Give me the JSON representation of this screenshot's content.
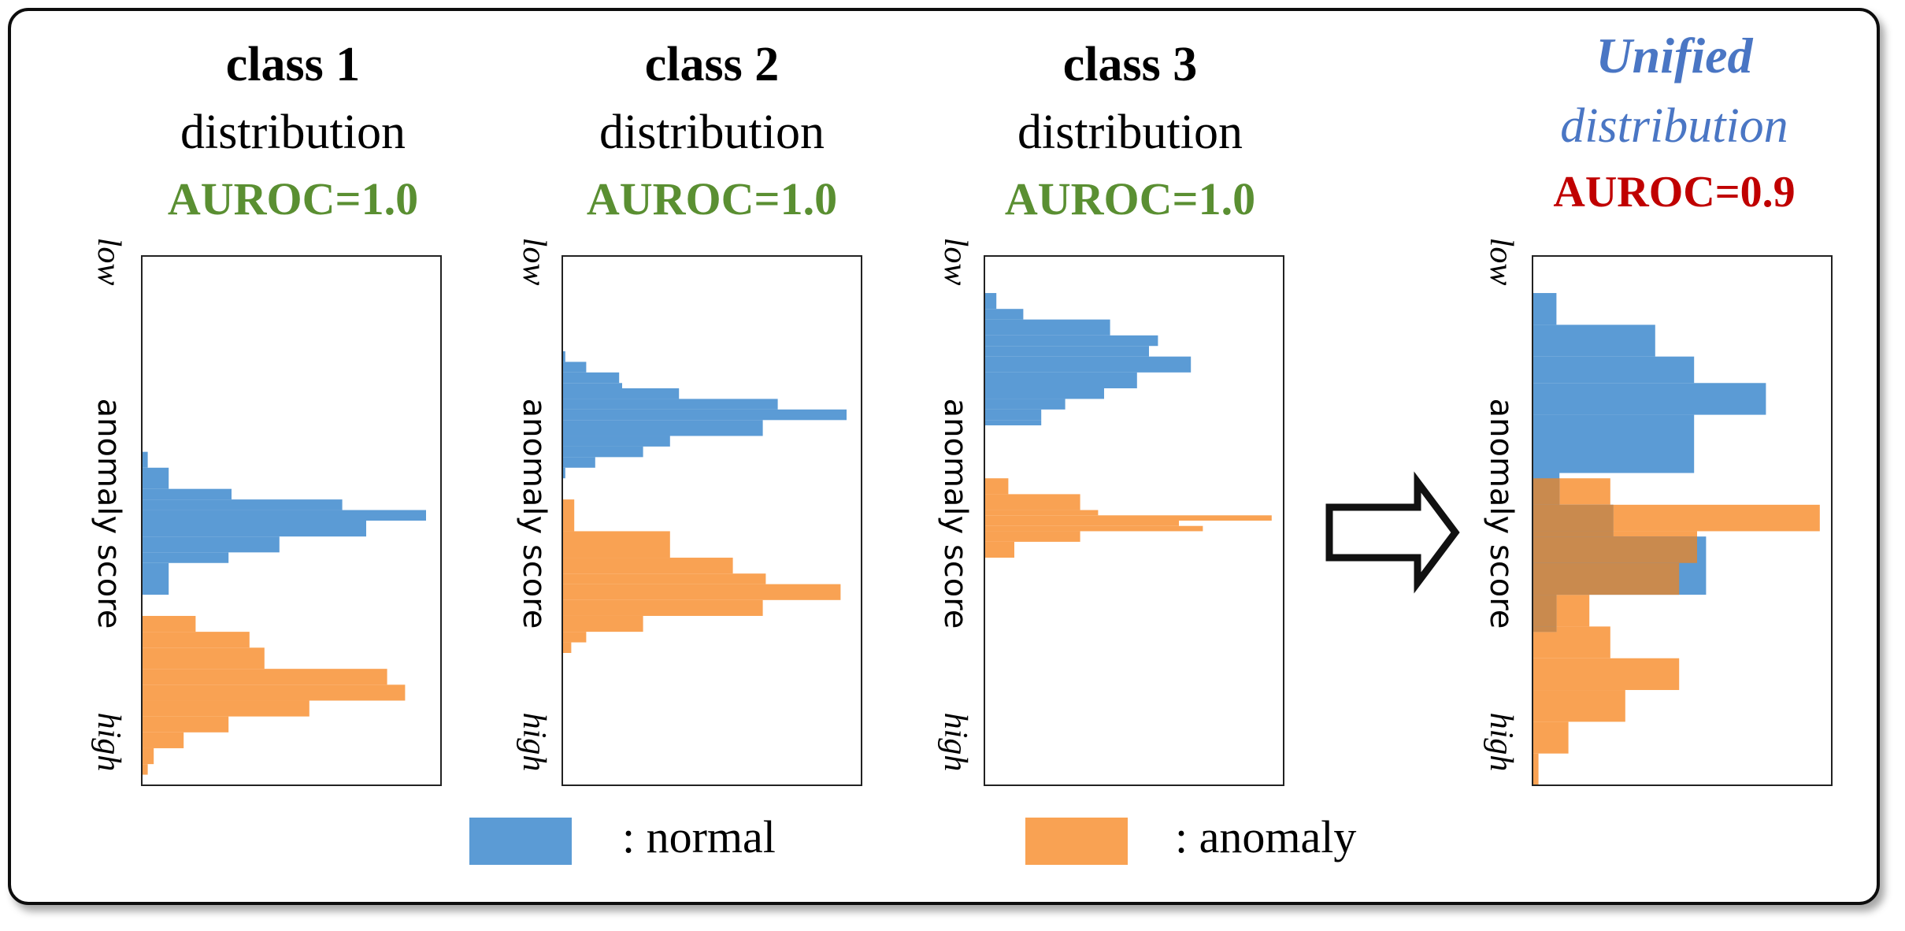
{
  "colors": {
    "normal": "#5b9bd5",
    "anomaly": "#f9a253",
    "overlap": "#c98a4e",
    "good": "#5a8f32",
    "bad": "#c00000",
    "unified": "#4a76c4",
    "frame": "#111111"
  },
  "legend": {
    "normal_label": ": normal",
    "anomaly_label": ": anomaly"
  },
  "arrow_icon": "right-arrow-icon",
  "chart_data": [
    {
      "type": "histogram",
      "orientation": "horizontal",
      "title": "class 1",
      "subtitle": "distribution",
      "metric": "AUROC=1.0",
      "metric_status": "good",
      "axis_label": "anomaly score",
      "axis_low": "low",
      "axis_high": "high",
      "y_range": [
        0,
        100
      ],
      "x_range": [
        0,
        100
      ],
      "series": [
        {
          "name": "normal",
          "bins": [
            {
              "y0": 37,
              "y1": 40,
              "v": 2
            },
            {
              "y0": 40,
              "y1": 44,
              "v": 9
            },
            {
              "y0": 44,
              "y1": 46,
              "v": 30
            },
            {
              "y0": 46,
              "y1": 48,
              "v": 67
            },
            {
              "y0": 48,
              "y1": 50,
              "v": 95
            },
            {
              "y0": 50,
              "y1": 53,
              "v": 75
            },
            {
              "y0": 53,
              "y1": 56,
              "v": 46
            },
            {
              "y0": 56,
              "y1": 58,
              "v": 29
            },
            {
              "y0": 58,
              "y1": 64,
              "v": 9
            }
          ]
        },
        {
          "name": "anomaly",
          "bins": [
            {
              "y0": 68,
              "y1": 71,
              "v": 18
            },
            {
              "y0": 71,
              "y1": 74,
              "v": 36
            },
            {
              "y0": 74,
              "y1": 78,
              "v": 41
            },
            {
              "y0": 78,
              "y1": 81,
              "v": 82
            },
            {
              "y0": 81,
              "y1": 84,
              "v": 88
            },
            {
              "y0": 84,
              "y1": 87,
              "v": 56
            },
            {
              "y0": 87,
              "y1": 90,
              "v": 29
            },
            {
              "y0": 90,
              "y1": 93,
              "v": 14
            },
            {
              "y0": 93,
              "y1": 96,
              "v": 4
            },
            {
              "y0": 96,
              "y1": 98,
              "v": 2
            }
          ]
        }
      ]
    },
    {
      "type": "histogram",
      "orientation": "horizontal",
      "title": "class 2",
      "subtitle": "distribution",
      "metric": "AUROC=1.0",
      "metric_status": "good",
      "axis_label": "anomaly score",
      "axis_low": "low",
      "axis_high": "high",
      "y_range": [
        0,
        100
      ],
      "x_range": [
        0,
        100
      ],
      "series": [
        {
          "name": "normal",
          "bins": [
            {
              "y0": 18,
              "y1": 20,
              "v": 1
            },
            {
              "y0": 20,
              "y1": 22,
              "v": 8
            },
            {
              "y0": 22,
              "y1": 24,
              "v": 19
            },
            {
              "y0": 24,
              "y1": 25,
              "v": 20
            },
            {
              "y0": 25,
              "y1": 27,
              "v": 39
            },
            {
              "y0": 27,
              "y1": 29,
              "v": 72
            },
            {
              "y0": 29,
              "y1": 31,
              "v": 95
            },
            {
              "y0": 31,
              "y1": 34,
              "v": 67
            },
            {
              "y0": 34,
              "y1": 36,
              "v": 36
            },
            {
              "y0": 36,
              "y1": 38,
              "v": 27
            },
            {
              "y0": 38,
              "y1": 40,
              "v": 11
            },
            {
              "y0": 40,
              "y1": 42,
              "v": 1
            }
          ]
        },
        {
          "name": "anomaly",
          "bins": [
            {
              "y0": 46,
              "y1": 52,
              "v": 4
            },
            {
              "y0": 52,
              "y1": 57,
              "v": 36
            },
            {
              "y0": 57,
              "y1": 60,
              "v": 57
            },
            {
              "y0": 60,
              "y1": 62,
              "v": 68
            },
            {
              "y0": 62,
              "y1": 65,
              "v": 93
            },
            {
              "y0": 65,
              "y1": 68,
              "v": 67
            },
            {
              "y0": 68,
              "y1": 71,
              "v": 27
            },
            {
              "y0": 71,
              "y1": 73,
              "v": 8
            },
            {
              "y0": 73,
              "y1": 75,
              "v": 3
            }
          ]
        }
      ]
    },
    {
      "type": "histogram",
      "orientation": "horizontal",
      "title": "class 3",
      "subtitle": "distribution",
      "metric": "AUROC=1.0",
      "metric_status": "good",
      "axis_label": "anomaly score",
      "axis_low": "low",
      "axis_high": "high",
      "y_range": [
        0,
        100
      ],
      "x_range": [
        0,
        100
      ],
      "series": [
        {
          "name": "normal",
          "bins": [
            {
              "y0": 7,
              "y1": 10,
              "v": 4
            },
            {
              "y0": 10,
              "y1": 12,
              "v": 13
            },
            {
              "y0": 12,
              "y1": 15,
              "v": 42
            },
            {
              "y0": 15,
              "y1": 17,
              "v": 58
            },
            {
              "y0": 17,
              "y1": 19,
              "v": 55
            },
            {
              "y0": 19,
              "y1": 22,
              "v": 69
            },
            {
              "y0": 22,
              "y1": 25,
              "v": 51
            },
            {
              "y0": 25,
              "y1": 27,
              "v": 40
            },
            {
              "y0": 27,
              "y1": 29,
              "v": 27
            },
            {
              "y0": 29,
              "y1": 31,
              "v": 19
            },
            {
              "y0": 31,
              "y1": 32,
              "v": 19
            }
          ]
        },
        {
          "name": "anomaly",
          "bins": [
            {
              "y0": 42,
              "y1": 45,
              "v": 8
            },
            {
              "y0": 45,
              "y1": 48,
              "v": 32
            },
            {
              "y0": 48,
              "y1": 49,
              "v": 38
            },
            {
              "y0": 49,
              "y1": 50,
              "v": 96
            },
            {
              "y0": 50,
              "y1": 51,
              "v": 65
            },
            {
              "y0": 51,
              "y1": 52,
              "v": 73
            },
            {
              "y0": 52,
              "y1": 54,
              "v": 32
            },
            {
              "y0": 54,
              "y1": 57,
              "v": 10
            }
          ]
        }
      ]
    },
    {
      "type": "histogram",
      "orientation": "horizontal",
      "title": "Unified",
      "subtitle": "distribution",
      "metric": "AUROC=0.9",
      "metric_status": "bad",
      "axis_label": "anomaly score",
      "axis_low": "low",
      "axis_high": "high",
      "y_range": [
        0,
        100
      ],
      "x_range": [
        0,
        100
      ],
      "series": [
        {
          "name": "normal",
          "bins": [
            {
              "y0": 7,
              "y1": 13,
              "v": 8
            },
            {
              "y0": 13,
              "y1": 19,
              "v": 41
            },
            {
              "y0": 19,
              "y1": 24,
              "v": 54
            },
            {
              "y0": 24,
              "y1": 30,
              "v": 78
            },
            {
              "y0": 30,
              "y1": 41,
              "v": 54
            },
            {
              "y0": 41,
              "y1": 47,
              "v": 9
            },
            {
              "y0": 47,
              "y1": 53,
              "v": 27
            },
            {
              "y0": 53,
              "y1": 64,
              "v": 58
            },
            {
              "y0": 64,
              "y1": 71,
              "v": 8
            }
          ]
        },
        {
          "name": "anomaly",
          "bins": [
            {
              "y0": 42,
              "y1": 47,
              "v": 26
            },
            {
              "y0": 47,
              "y1": 52,
              "v": 96
            },
            {
              "y0": 52,
              "y1": 58,
              "v": 55
            },
            {
              "y0": 58,
              "y1": 64,
              "v": 49
            },
            {
              "y0": 64,
              "y1": 70,
              "v": 19
            },
            {
              "y0": 70,
              "y1": 76,
              "v": 26
            },
            {
              "y0": 76,
              "y1": 82,
              "v": 49
            },
            {
              "y0": 82,
              "y1": 88,
              "v": 31
            },
            {
              "y0": 88,
              "y1": 94,
              "v": 12
            },
            {
              "y0": 94,
              "y1": 100,
              "v": 2
            }
          ]
        }
      ]
    }
  ]
}
